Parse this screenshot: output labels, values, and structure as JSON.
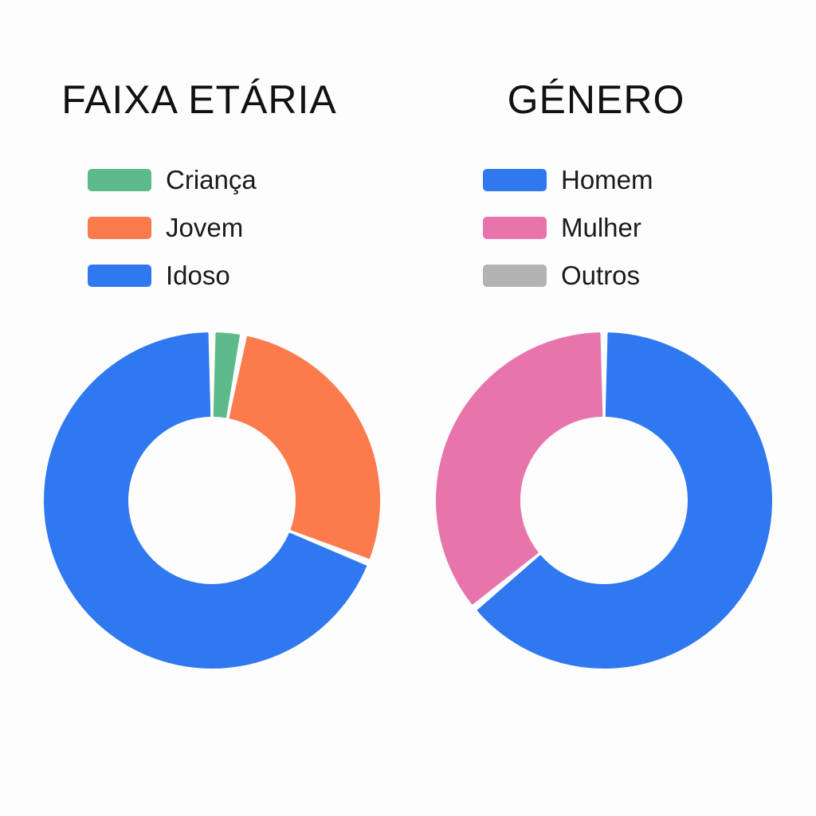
{
  "chart_data": [
    {
      "type": "pie",
      "variant": "donut",
      "title": "FAIXA ETÁRIA",
      "legend_position": "top",
      "categories": [
        "Criança",
        "Jovem",
        "Idoso"
      ],
      "values": [
        3,
        28,
        69
      ],
      "unit": "%",
      "colors": [
        "#5dba8a",
        "#fc7b4c",
        "#2f78f0"
      ],
      "slice_order": [
        "Criança",
        "Jovem",
        "Idoso"
      ]
    },
    {
      "type": "pie",
      "variant": "donut",
      "title": "GÉNERO",
      "legend_position": "top",
      "categories": [
        "Homem",
        "Mulher",
        "Outros"
      ],
      "values": [
        64,
        36,
        0
      ],
      "unit": "%",
      "colors": [
        "#2f78f0",
        "#e874ac",
        "#b3b3b3"
      ],
      "slice_order": [
        "Homem",
        "Outros",
        "Mulher"
      ]
    }
  ]
}
